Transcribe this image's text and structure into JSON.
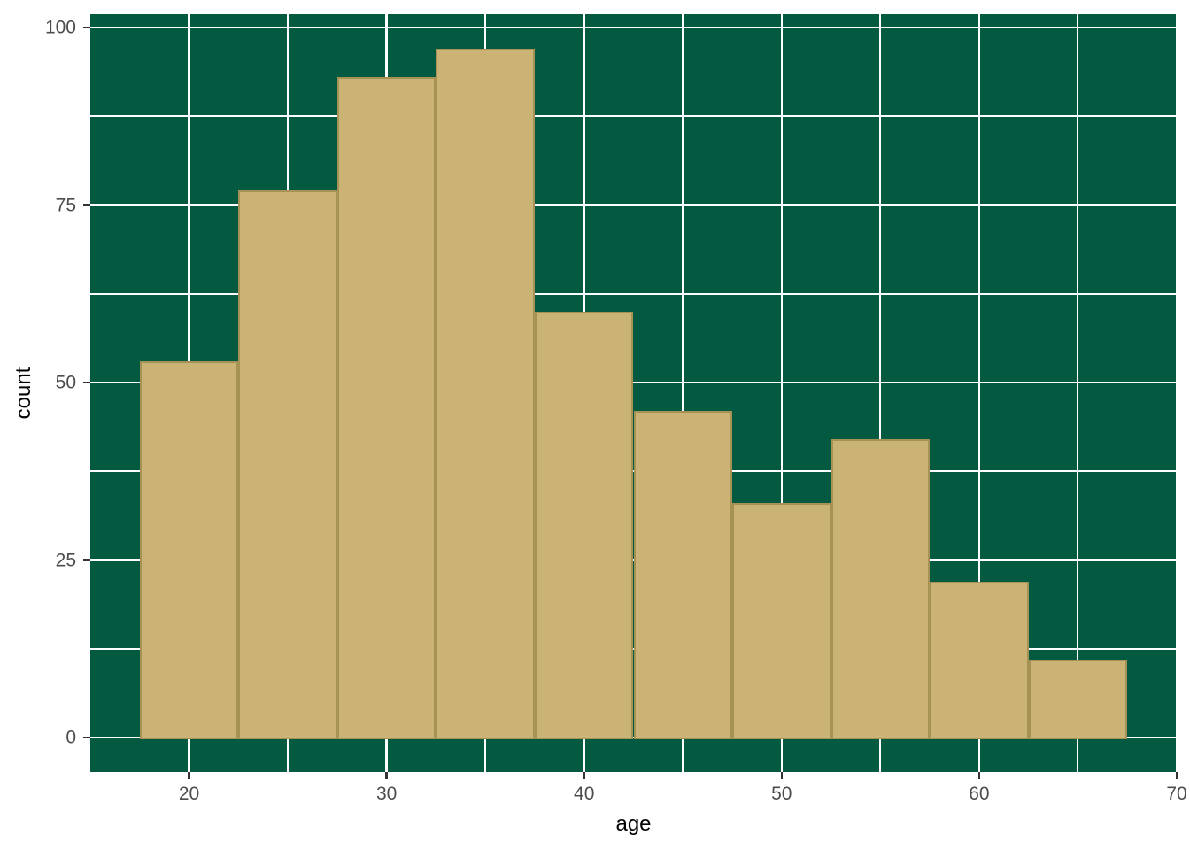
{
  "chart_data": {
    "type": "bar",
    "subtype": "histogram",
    "title": "",
    "xlabel": "age",
    "ylabel": "count",
    "bin_edges": [
      17.5,
      22.5,
      27.5,
      32.5,
      37.5,
      42.5,
      47.5,
      52.5,
      57.5,
      62.5,
      67.5
    ],
    "counts": [
      53,
      77,
      93,
      97,
      60,
      46,
      33,
      42,
      22,
      11
    ],
    "xlim": [
      15,
      70
    ],
    "ylim": [
      -4.86,
      101.87
    ],
    "x_major_ticks": [
      20,
      30,
      40,
      50,
      60,
      70
    ],
    "x_tick_labels": [
      "20",
      "30",
      "40",
      "50",
      "60",
      "70"
    ],
    "x_minor_gridlines": [
      25,
      35,
      45,
      55,
      65
    ],
    "y_major_ticks": [
      0,
      25,
      50,
      75,
      100
    ],
    "y_tick_labels": [
      "0",
      "25",
      "50",
      "75",
      "100"
    ],
    "y_minor_gridlines": [
      12.5,
      37.5,
      62.5,
      87.5
    ],
    "grid": true,
    "legend": false,
    "colors": {
      "figure_bg": "#FFFFFF",
      "panel_bg": "#045941",
      "grid": "#FFFFFF",
      "bar_fill": "#CBB275",
      "bar_border": "#A69254",
      "tick": "#333333",
      "tick_label": "#4D4D4D",
      "axis_title": "#000000"
    }
  }
}
